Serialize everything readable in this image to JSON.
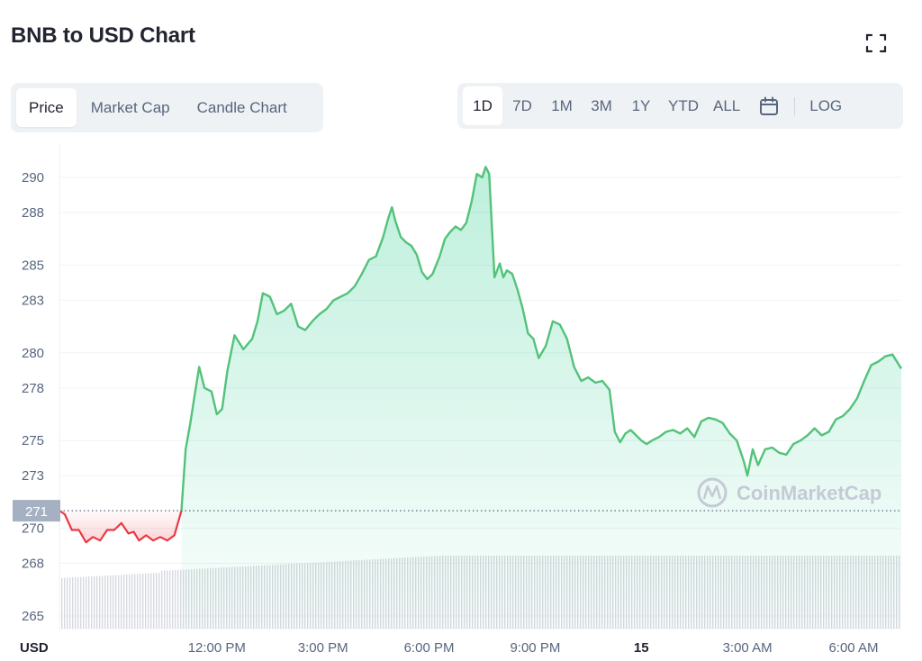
{
  "header": {
    "title": "BNB to USD Chart",
    "fullscreen_icon": "fullscreen-icon"
  },
  "type_tabs": [
    {
      "label": "Price",
      "active": true
    },
    {
      "label": "Market Cap",
      "active": false
    },
    {
      "label": "Candle Chart",
      "active": false
    }
  ],
  "range_tabs": [
    {
      "label": "1D",
      "active": true
    },
    {
      "label": "7D",
      "active": false
    },
    {
      "label": "1M",
      "active": false
    },
    {
      "label": "3M",
      "active": false
    },
    {
      "label": "1Y",
      "active": false
    },
    {
      "label": "YTD",
      "active": false
    },
    {
      "label": "ALL",
      "active": false
    }
  ],
  "calendar_icon": "calendar-icon",
  "log_label": "LOG",
  "watermark": "CoinMarketCap",
  "colors": {
    "up": "#16c784",
    "up_line": "#53c27a",
    "down": "#ea3943",
    "grid": "#eff2f5",
    "volume": "#d6d9df",
    "tag_bg": "#a6b0c3"
  },
  "chart_data": {
    "type": "line",
    "currency_label": "USD",
    "ylim": [
      264,
      291.5
    ],
    "y_ticks": [
      265,
      268,
      270,
      273,
      275,
      278,
      280,
      283,
      285,
      288,
      290
    ],
    "y_tick_labels": [
      "265",
      "268",
      "270",
      "273",
      "275",
      "278",
      "280",
      "283",
      "285",
      "288",
      "290"
    ],
    "x_ticks": [
      {
        "label": "12:00 PM",
        "h": 12,
        "bold": false
      },
      {
        "label": "3:00 PM",
        "h": 15,
        "bold": false
      },
      {
        "label": "6:00 PM",
        "h": 18,
        "bold": false
      },
      {
        "label": "9:00 PM",
        "h": 21,
        "bold": false
      },
      {
        "label": "15",
        "h": 24,
        "bold": true
      },
      {
        "label": "3:00 AM",
        "h": 27,
        "bold": false
      },
      {
        "label": "6:00 AM",
        "h": 30,
        "bold": false
      }
    ],
    "xlim_hours": [
      7.55,
      31.35
    ],
    "open_price": 271,
    "open_price_label": "271",
    "series": [
      {
        "values": [
          [
            7.55,
            271.0
          ],
          [
            7.7,
            270.8
          ],
          [
            7.9,
            269.9
          ],
          [
            8.1,
            269.9
          ],
          [
            8.3,
            269.2
          ],
          [
            8.5,
            269.5
          ],
          [
            8.7,
            269.3
          ],
          [
            8.9,
            269.9
          ],
          [
            9.1,
            269.9
          ],
          [
            9.3,
            270.3
          ],
          [
            9.5,
            269.7
          ],
          [
            9.65,
            269.8
          ],
          [
            9.8,
            269.3
          ],
          [
            10.0,
            269.6
          ],
          [
            10.2,
            269.3
          ],
          [
            10.4,
            269.5
          ],
          [
            10.6,
            269.3
          ],
          [
            10.8,
            269.6
          ],
          [
            11.0,
            271.0
          ],
          [
            11.12,
            274.5
          ],
          [
            11.25,
            276.0
          ],
          [
            11.35,
            277.3
          ],
          [
            11.5,
            279.2
          ],
          [
            11.65,
            278.0
          ],
          [
            11.85,
            277.8
          ],
          [
            12.0,
            276.5
          ],
          [
            12.15,
            276.8
          ],
          [
            12.3,
            279.0
          ],
          [
            12.5,
            281.0
          ],
          [
            12.75,
            280.2
          ],
          [
            13.0,
            280.8
          ],
          [
            13.15,
            281.8
          ],
          [
            13.3,
            283.4
          ],
          [
            13.5,
            283.2
          ],
          [
            13.7,
            282.2
          ],
          [
            13.9,
            282.4
          ],
          [
            14.1,
            282.8
          ],
          [
            14.3,
            281.5
          ],
          [
            14.5,
            281.3
          ],
          [
            14.7,
            281.8
          ],
          [
            14.9,
            282.2
          ],
          [
            15.1,
            282.5
          ],
          [
            15.3,
            283.0
          ],
          [
            15.5,
            283.2
          ],
          [
            15.7,
            283.4
          ],
          [
            15.9,
            283.8
          ],
          [
            16.1,
            284.5
          ],
          [
            16.3,
            285.3
          ],
          [
            16.5,
            285.5
          ],
          [
            16.7,
            286.6
          ],
          [
            16.85,
            287.7
          ],
          [
            16.95,
            288.3
          ],
          [
            17.05,
            287.5
          ],
          [
            17.2,
            286.6
          ],
          [
            17.35,
            286.3
          ],
          [
            17.5,
            286.1
          ],
          [
            17.65,
            285.6
          ],
          [
            17.8,
            284.6
          ],
          [
            17.95,
            284.2
          ],
          [
            18.1,
            284.5
          ],
          [
            18.3,
            285.5
          ],
          [
            18.45,
            286.5
          ],
          [
            18.6,
            286.9
          ],
          [
            18.75,
            287.2
          ],
          [
            18.9,
            287.0
          ],
          [
            19.05,
            287.4
          ],
          [
            19.2,
            288.6
          ],
          [
            19.35,
            290.2
          ],
          [
            19.5,
            290.0
          ],
          [
            19.6,
            290.6
          ],
          [
            19.7,
            290.2
          ],
          [
            19.85,
            284.3
          ],
          [
            20.0,
            285.1
          ],
          [
            20.1,
            284.3
          ],
          [
            20.2,
            284.7
          ],
          [
            20.35,
            284.5
          ],
          [
            20.5,
            283.6
          ],
          [
            20.65,
            282.5
          ],
          [
            20.8,
            281.1
          ],
          [
            20.95,
            280.8
          ],
          [
            21.1,
            279.7
          ],
          [
            21.3,
            280.4
          ],
          [
            21.5,
            281.8
          ],
          [
            21.7,
            281.6
          ],
          [
            21.9,
            280.8
          ],
          [
            22.1,
            279.2
          ],
          [
            22.3,
            278.4
          ],
          [
            22.5,
            278.6
          ],
          [
            22.7,
            278.3
          ],
          [
            22.9,
            278.4
          ],
          [
            23.1,
            277.9
          ],
          [
            23.25,
            275.5
          ],
          [
            23.4,
            274.9
          ],
          [
            23.55,
            275.4
          ],
          [
            23.7,
            275.6
          ],
          [
            23.85,
            275.3
          ],
          [
            24.0,
            275.0
          ],
          [
            24.15,
            274.8
          ],
          [
            24.3,
            275.0
          ],
          [
            24.5,
            275.2
          ],
          [
            24.7,
            275.5
          ],
          [
            24.9,
            275.6
          ],
          [
            25.1,
            275.4
          ],
          [
            25.3,
            275.7
          ],
          [
            25.5,
            275.2
          ],
          [
            25.7,
            276.1
          ],
          [
            25.9,
            276.3
          ],
          [
            26.1,
            276.2
          ],
          [
            26.3,
            276.0
          ],
          [
            26.5,
            275.4
          ],
          [
            26.7,
            275.0
          ],
          [
            26.9,
            273.8
          ],
          [
            27.0,
            273.0
          ],
          [
            27.15,
            274.5
          ],
          [
            27.3,
            273.6
          ],
          [
            27.5,
            274.5
          ],
          [
            27.7,
            274.6
          ],
          [
            27.9,
            274.3
          ],
          [
            28.1,
            274.2
          ],
          [
            28.3,
            274.8
          ],
          [
            28.5,
            275.0
          ],
          [
            28.7,
            275.3
          ],
          [
            28.9,
            275.7
          ],
          [
            29.1,
            275.3
          ],
          [
            29.3,
            275.5
          ],
          [
            29.5,
            276.2
          ],
          [
            29.7,
            276.4
          ],
          [
            29.9,
            276.8
          ],
          [
            30.1,
            277.4
          ],
          [
            30.3,
            278.4
          ],
          [
            30.5,
            279.3
          ],
          [
            30.7,
            279.5
          ],
          [
            30.9,
            279.8
          ],
          [
            31.1,
            279.9
          ],
          [
            31.35,
            279.1
          ]
        ]
      }
    ],
    "volume_note": "volume bars along bottom of chart"
  }
}
